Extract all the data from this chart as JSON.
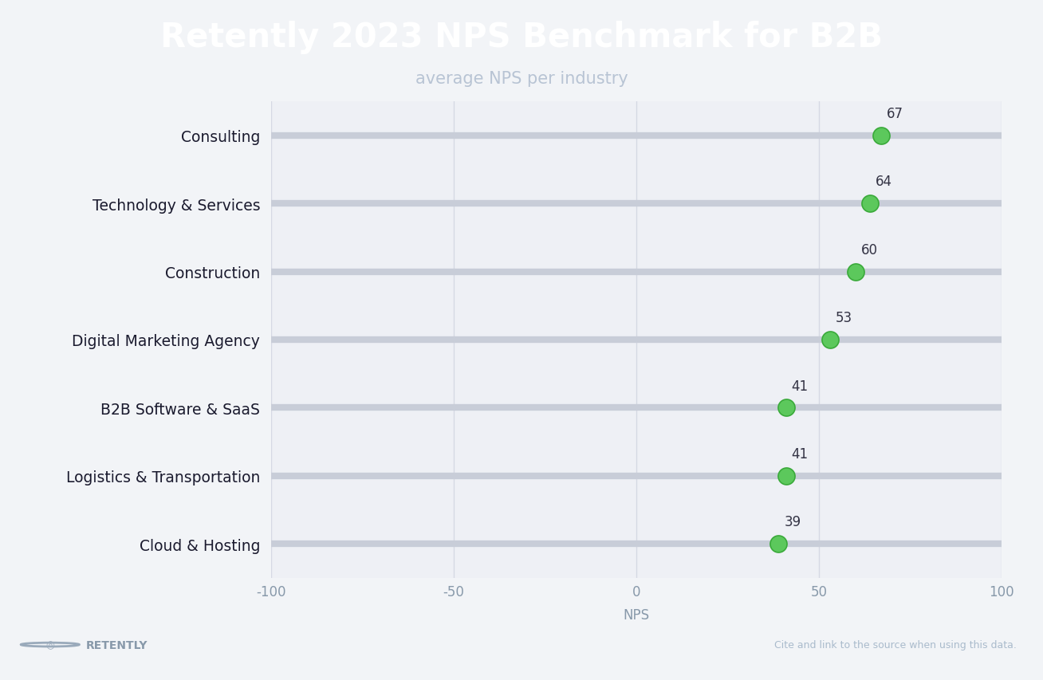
{
  "title": "Retently 2023 NPS Benchmark for B2B",
  "subtitle": "average NPS per industry",
  "title_bg_color": "#1e2a3a",
  "plot_bg_color": "#eef0f5",
  "fig_bg_color": "#f2f4f7",
  "categories": [
    "Consulting",
    "Technology & Services",
    "Construction",
    "Digital Marketing Agency",
    "B2B Software & SaaS",
    "Logistics & Transportation",
    "Cloud & Hosting"
  ],
  "values": [
    67,
    64,
    60,
    53,
    41,
    41,
    39
  ],
  "xlim": [
    -100,
    100
  ],
  "xticks": [
    -100,
    -50,
    0,
    50,
    100
  ],
  "dot_color": "#5cc85c",
  "dot_edgecolor": "#3aaa3a",
  "line_color": "#c8cdd8",
  "grid_color": "#d5d9e4",
  "label_color": "#8899aa",
  "xlabel": "NPS",
  "footer_left": "RETENTLY",
  "footer_right": "Cite and link to the source when using this data.",
  "value_label_color": "#333344",
  "category_label_color": "#1a1a2e"
}
